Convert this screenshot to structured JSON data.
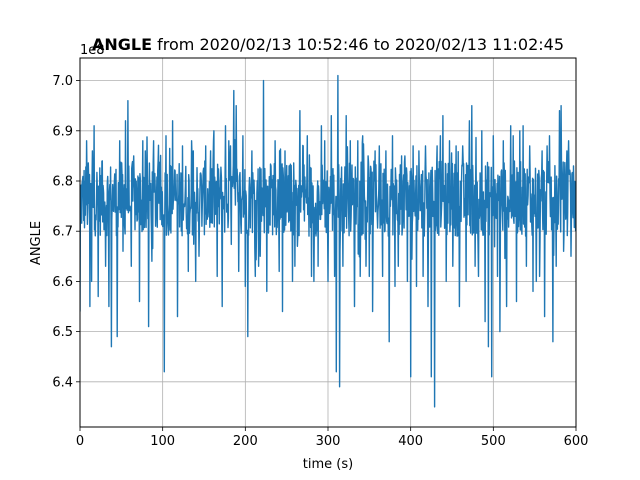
{
  "chart_data": {
    "type": "line",
    "title_bold": "ANGLE",
    "title_rest": " from 2020/02/13 10:52:46 to 2020/02/13 11:02:45",
    "xlabel": "time (s)",
    "ylabel": "ANGLE",
    "offset_text": "1e8",
    "xlim": [
      0,
      600
    ],
    "ylim": [
      6.31,
      7.045
    ],
    "xticks": [
      0,
      100,
      200,
      300,
      400,
      500,
      600
    ],
    "xtick_labels": [
      "0",
      "100",
      "200",
      "300",
      "400",
      "500",
      "600"
    ],
    "yticks": [
      6.4,
      6.5,
      6.6,
      6.7,
      6.8,
      6.9,
      7.0
    ],
    "ytick_labels": [
      "6.4",
      "6.5",
      "6.6",
      "6.7",
      "6.8",
      "6.9",
      "7.0"
    ],
    "grid": true,
    "series_color": "#1f77b4",
    "series": [
      {
        "baseline": 6.76,
        "band": [
          6.69,
          6.84
        ],
        "spikes": [
          [
            0,
            6.54
          ],
          [
            8,
            6.88
          ],
          [
            12,
            6.55
          ],
          [
            14,
            6.6
          ],
          [
            15,
            6.86
          ],
          [
            17,
            6.91
          ],
          [
            22,
            6.57
          ],
          [
            27,
            6.84
          ],
          [
            31,
            6.63
          ],
          [
            35,
            6.55
          ],
          [
            38,
            6.47
          ],
          [
            45,
            6.49
          ],
          [
            48,
            6.88
          ],
          [
            52,
            6.66
          ],
          [
            55,
            6.92
          ],
          [
            58,
            6.96
          ],
          [
            62,
            6.63
          ],
          [
            65,
            6.85
          ],
          [
            72,
            6.56
          ],
          [
            76,
            6.88
          ],
          [
            79,
            6.86
          ],
          [
            83,
            6.51
          ],
          [
            87,
            6.64
          ],
          [
            89,
            6.88
          ],
          [
            94,
            6.82
          ],
          [
            102,
            6.42
          ],
          [
            104,
            6.89
          ],
          [
            112,
            6.92
          ],
          [
            118,
            6.53
          ],
          [
            124,
            6.87
          ],
          [
            131,
            6.62
          ],
          [
            135,
            6.88
          ],
          [
            137,
            6.86
          ],
          [
            140,
            6.6
          ],
          [
            144,
            6.65
          ],
          [
            152,
            6.87
          ],
          [
            158,
            6.86
          ],
          [
            162,
            6.9
          ],
          [
            166,
            6.61
          ],
          [
            172,
            6.55
          ],
          [
            176,
            6.91
          ],
          [
            180,
            6.88
          ],
          [
            182,
            6.87
          ],
          [
            186,
            6.98
          ],
          [
            189,
            6.95
          ],
          [
            192,
            6.62
          ],
          [
            197,
            6.89
          ],
          [
            200,
            6.59
          ],
          [
            203,
            6.49
          ],
          [
            208,
            6.86
          ],
          [
            212,
            6.61
          ],
          [
            216,
            6.63
          ],
          [
            218,
            6.65
          ],
          [
            222,
            7.0
          ],
          [
            226,
            6.58
          ],
          [
            231,
            6.83
          ],
          [
            236,
            6.88
          ],
          [
            241,
            6.62
          ],
          [
            245,
            6.54
          ],
          [
            248,
            6.86
          ],
          [
            253,
            6.83
          ],
          [
            257,
            6.6
          ],
          [
            260,
            6.63
          ],
          [
            263,
            6.67
          ],
          [
            266,
            6.94
          ],
          [
            270,
            6.87
          ],
          [
            275,
            6.89
          ],
          [
            280,
            6.61
          ],
          [
            283,
            6.6
          ],
          [
            288,
            6.63
          ],
          [
            292,
            6.91
          ],
          [
            296,
            6.88
          ],
          [
            300,
            6.6
          ],
          [
            304,
            6.93
          ],
          [
            308,
            6.61
          ],
          [
            310,
            6.42
          ],
          [
            312,
            7.01
          ],
          [
            314,
            6.39
          ],
          [
            318,
            6.63
          ],
          [
            322,
            6.93
          ],
          [
            327,
            6.88
          ],
          [
            332,
            6.55
          ],
          [
            336,
            6.88
          ],
          [
            339,
            6.61
          ],
          [
            342,
            6.89
          ],
          [
            346,
            6.63
          ],
          [
            350,
            6.61
          ],
          [
            354,
            6.54
          ],
          [
            357,
            6.86
          ],
          [
            362,
            6.87
          ],
          [
            366,
            6.61
          ],
          [
            370,
            6.86
          ],
          [
            374,
            6.48
          ],
          [
            378,
            6.89
          ],
          [
            381,
            6.59
          ],
          [
            385,
            6.63
          ],
          [
            389,
            6.85
          ],
          [
            393,
            6.85
          ],
          [
            396,
            6.6
          ],
          [
            400,
            6.41
          ],
          [
            403,
            6.87
          ],
          [
            407,
            6.59
          ],
          [
            410,
            6.86
          ],
          [
            415,
            6.61
          ],
          [
            418,
            6.87
          ],
          [
            421,
            6.55
          ],
          [
            425,
            6.41
          ],
          [
            429,
            6.35
          ],
          [
            432,
            6.87
          ],
          [
            436,
            6.89
          ],
          [
            439,
            6.93
          ],
          [
            443,
            6.6
          ],
          [
            447,
            6.88
          ],
          [
            451,
            6.63
          ],
          [
            455,
            6.87
          ],
          [
            459,
            6.55
          ],
          [
            463,
            6.87
          ],
          [
            467,
            6.6
          ],
          [
            471,
            6.92
          ],
          [
            474,
            6.95
          ],
          [
            478,
            6.63
          ],
          [
            482,
            6.61
          ],
          [
            486,
            6.9
          ],
          [
            490,
            6.52
          ],
          [
            494,
            6.47
          ],
          [
            498,
            6.41
          ],
          [
            500,
            6.89
          ],
          [
            505,
            6.61
          ],
          [
            508,
            6.5
          ],
          [
            512,
            6.88
          ],
          [
            516,
            6.55
          ],
          [
            521,
            6.91
          ],
          [
            524,
            6.89
          ],
          [
            528,
            6.56
          ],
          [
            532,
            6.9
          ],
          [
            536,
            6.91
          ],
          [
            540,
            6.63
          ],
          [
            544,
            6.87
          ],
          [
            548,
            6.58
          ],
          [
            552,
            6.6
          ],
          [
            556,
            6.61
          ],
          [
            559,
            6.86
          ],
          [
            562,
            6.53
          ],
          [
            565,
            6.87
          ],
          [
            568,
            6.89
          ],
          [
            572,
            6.48
          ],
          [
            576,
            6.63
          ],
          [
            580,
            6.94
          ],
          [
            582,
            6.95
          ],
          [
            585,
            6.66
          ],
          [
            589,
            6.86
          ],
          [
            594,
            6.65
          ],
          [
            597,
            6.83
          ],
          [
            600,
            6.72
          ]
        ]
      }
    ]
  }
}
